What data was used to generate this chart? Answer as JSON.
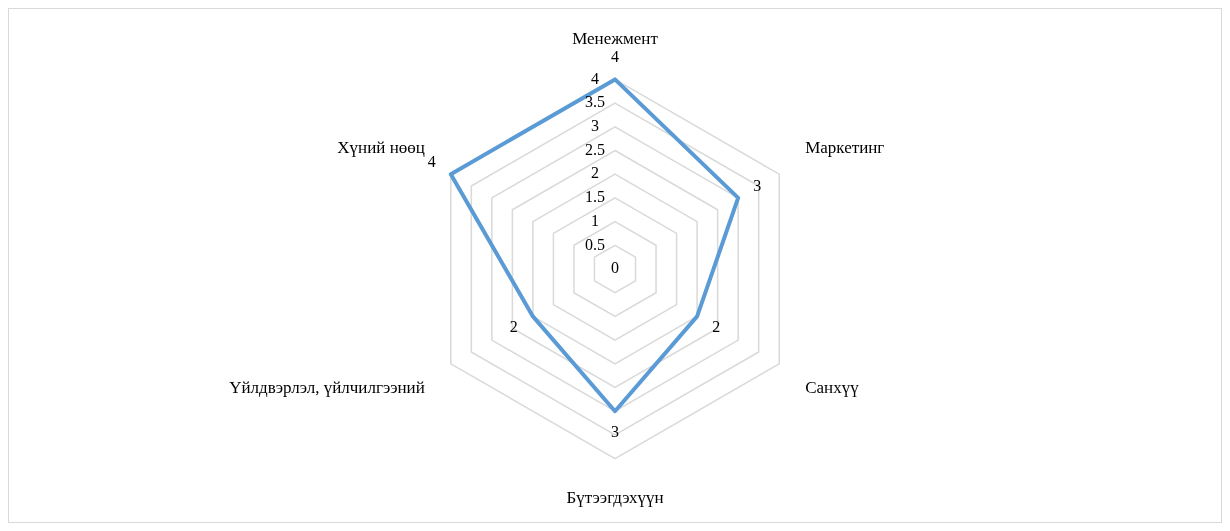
{
  "chart_data": {
    "type": "radar",
    "categories": [
      "Менежмент",
      "Маркетинг",
      "Санхүү",
      "Бүтээгдэхүүн",
      "Үйлдвэрлэл, үйлчилгээний",
      "Хүний нөөц"
    ],
    "series": [
      {
        "color": "#5b9bd5",
        "values": [
          4,
          3,
          2,
          3,
          2,
          4
        ]
      }
    ],
    "ylim": [
      0,
      4
    ],
    "yticks": [
      {
        "value": 0,
        "label": "0"
      },
      0.5,
      1,
      1.5,
      2,
      {
        "value": 2.5,
        "label": "2.5"
      },
      3,
      {
        "value": 3.5,
        "label": "3.5"
      },
      4
    ],
    "grid": true,
    "data_labels": true,
    "legend": false,
    "marker": "none"
  }
}
